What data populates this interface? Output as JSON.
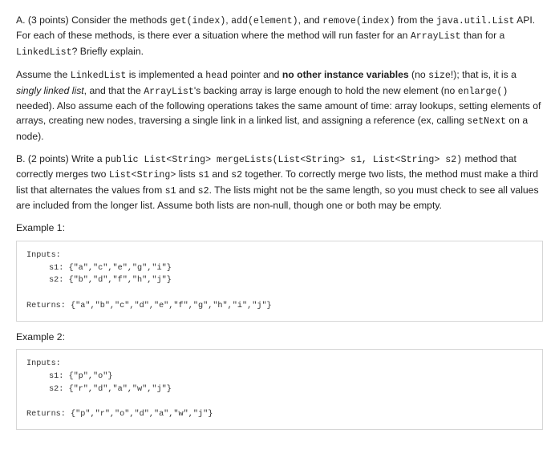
{
  "partA": {
    "sentence1_pre": "A. (3 points) Consider the methods ",
    "code_get": "get(index)",
    "comma1": ", ",
    "code_add": "add(element)",
    "comma2": ", and ",
    "code_remove": "remove(index)",
    "sentence1_mid": " from the ",
    "code_list": "java.util.List",
    "sentence1_post": " API. For each of these methods, is there ever a situation where the method will run faster for an ",
    "code_arraylist": "ArrayList",
    "than_for": " than for a ",
    "code_linkedlist": "LinkedList",
    "sentence1_end": "? Briefly explain.",
    "assume_pre": "Assume the ",
    "assume_ll": "LinkedList",
    "assume_mid1": " is implemented a ",
    "assume_head": "head",
    "assume_mid2": " pointer and ",
    "assume_bold": "no other instance variables",
    "assume_mid3": " (no ",
    "assume_size": "size",
    "assume_mid4": "!); that is, it is a ",
    "assume_italic": "singly linked list",
    "assume_mid5": ", and that the ",
    "assume_al": "ArrayList",
    "assume_mid6": "'s backing array is large enough to hold the new element (no ",
    "assume_enlarge": "enlarge()",
    "assume_mid7": " needed). Also assume each of the following operations takes the same amount of time: array lookups, setting elements of arrays, creating new nodes, traversing a single link in a linked list, and assigning a reference (ex, calling ",
    "assume_setnext": "setNext",
    "assume_end": " on a node)."
  },
  "partB": {
    "pre": "B. (2 points) Write a ",
    "signature": "public List<String> mergeLists(List<String> s1, List<String> s2)",
    "mid1": " method that correctly merges two ",
    "liststring": "List<String>",
    "mid2": " lists ",
    "s1": "s1",
    "and": " and ",
    "s2": "s2",
    "mid3": " together. To correctly merge two lists, the method must make a third list that alternates the values from ",
    "s1b": "s1",
    "and2": " and ",
    "s2b": "s2",
    "end": ". The lists might not be the same length, so you must check to see all values are included from the longer list. Assume both lists are non-null, though one or both may be empty."
  },
  "example1": {
    "label": "Example 1:",
    "inputs_label": "Inputs:",
    "s1_line": "s1: {\"a\",\"c\",\"e\",\"g\",\"i\"}",
    "s2_line": "s2: {\"b\",\"d\",\"f\",\"h\",\"j\"}",
    "returns_line": "Returns: {\"a\",\"b\",\"c\",\"d\",\"e\",\"f\",\"g\",\"h\",\"i\",\"j\"}"
  },
  "example2": {
    "label": "Example 2:",
    "inputs_label": "Inputs:",
    "s1_line": "s1: {\"p\",\"o\"}",
    "s2_line": "s2: {\"r\",\"d\",\"a\",\"w\",\"j\"}",
    "returns_line": "Returns: {\"p\",\"r\",\"o\",\"d\",\"a\",\"w\",\"j\"}"
  }
}
